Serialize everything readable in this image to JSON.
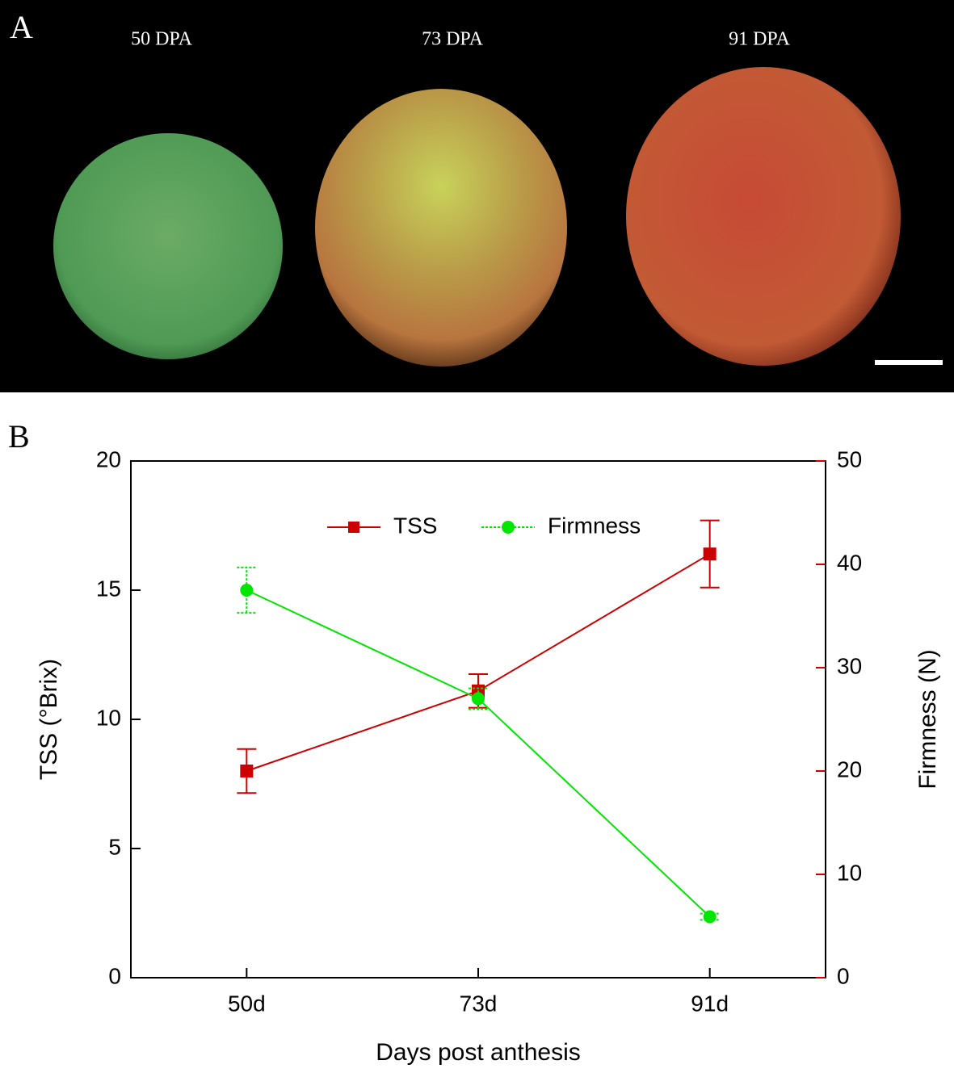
{
  "panel_a": {
    "label": "A",
    "captions": [
      "50 DPA",
      "73 DPA",
      "91 DPA"
    ]
  },
  "chart_data": {
    "type": "line",
    "panel_label": "B",
    "xlabel": "Days post anthesis",
    "ylabel": "TSS (°Brix)",
    "y2label": "Firmness (N)",
    "categories": [
      "50d",
      "73d",
      "91d"
    ],
    "series": [
      {
        "name": "TSS",
        "color": "#cc0000",
        "marker": "square",
        "values": [
          8.0,
          11.1,
          16.4
        ],
        "errors": [
          0.85,
          0.65,
          1.3
        ]
      },
      {
        "name": "Firmness",
        "color": "#00e600",
        "marker": "circle",
        "axis": "y2",
        "values": [
          37.5,
          27.0,
          5.9
        ],
        "errors": [
          2.2,
          1.0,
          0.3
        ]
      }
    ],
    "ylim": [
      0,
      20
    ],
    "yticks": [
      0,
      5,
      10,
      15,
      20
    ],
    "y2lim": [
      0,
      50
    ],
    "y2ticks": [
      0,
      10,
      20,
      30,
      40,
      50
    ],
    "legend": "top"
  }
}
